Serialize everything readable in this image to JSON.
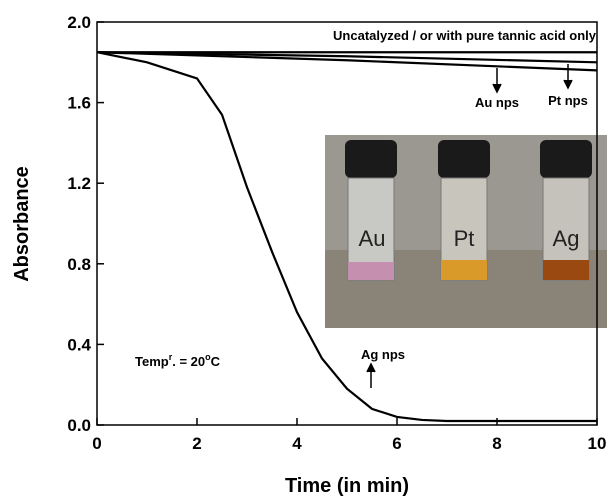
{
  "chart_data": {
    "type": "line",
    "xlabel": "Time (in min)",
    "ylabel": "Absorbance",
    "xlim": [
      0,
      10
    ],
    "ylim": [
      0,
      2
    ],
    "xticks": [
      0,
      2,
      4,
      6,
      8,
      10
    ],
    "yticks": [
      {
        "value": 0,
        "label": "0.0"
      },
      {
        "value": 0.4,
        "label": "0.4"
      },
      {
        "value": 0.8,
        "label": "0.8"
      },
      {
        "value": 1.2,
        "label": "1.2"
      },
      {
        "value": 1.6,
        "label": "1.6"
      },
      {
        "value": 2,
        "label": "2.0"
      }
    ],
    "series": [
      {
        "name": "Uncatalyzed / or with pure tannic acid only",
        "color": "#000000",
        "x": [
          0,
          5,
          10
        ],
        "values": [
          1.85,
          1.85,
          1.85
        ]
      },
      {
        "name": "Au nps",
        "color": "#000000",
        "x": [
          0,
          5,
          10
        ],
        "values": [
          1.85,
          1.83,
          1.8
        ]
      },
      {
        "name": "Pt nps",
        "color": "#000000",
        "x": [
          0,
          5,
          10
        ],
        "values": [
          1.85,
          1.81,
          1.76
        ]
      },
      {
        "name": "Ag nps",
        "color": "#000000",
        "x": [
          0,
          1,
          2,
          2.5,
          3,
          3.5,
          4,
          4.5,
          5,
          5.5,
          6,
          6.5,
          7,
          8,
          9,
          10
        ],
        "values": [
          1.85,
          1.8,
          1.72,
          1.54,
          1.18,
          0.86,
          0.56,
          0.33,
          0.18,
          0.08,
          0.04,
          0.025,
          0.02,
          0.02,
          0.02,
          0.02
        ]
      }
    ],
    "temperature_note": [
      {
        "text": "Temp"
      },
      {
        "text": "r",
        "sup": true
      },
      {
        "text": ". = 20"
      },
      {
        "text": "o",
        "sup": true
      },
      {
        "text": "C"
      }
    ],
    "inset_labels": [
      "Au",
      "Pt",
      "Ag"
    ]
  }
}
